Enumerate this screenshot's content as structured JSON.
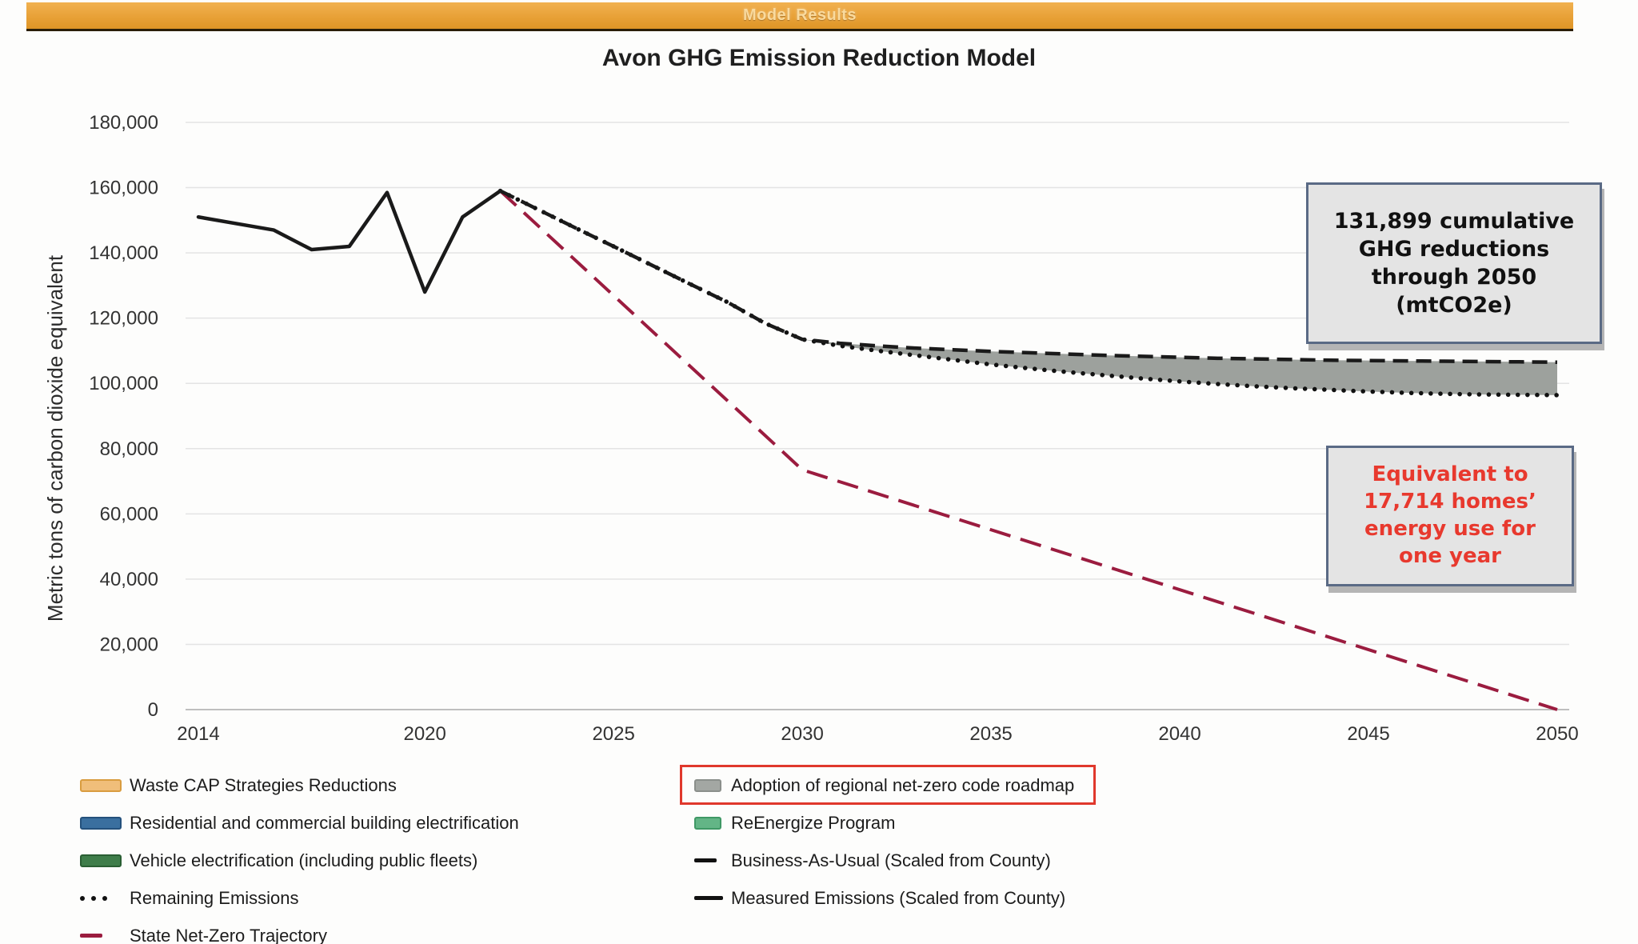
{
  "banner": {
    "label": "Model Results",
    "bg_color": "#E8A137",
    "text_color": "#F9DA9E",
    "border_color": "#2A1E08"
  },
  "chart_data": {
    "type": "line",
    "title": "Avon GHG Emission Reduction Model",
    "xlabel": "",
    "ylabel": "Metric tons of carbon dioxide equivalent",
    "xlim": [
      2014,
      2050
    ],
    "ylim": [
      0,
      180000
    ],
    "x_ticks": [
      2014,
      2020,
      2025,
      2030,
      2035,
      2040,
      2045,
      2050
    ],
    "y_ticks": [
      0,
      20000,
      40000,
      60000,
      80000,
      100000,
      120000,
      140000,
      160000,
      180000
    ],
    "grid": true,
    "legend_position": "bottom",
    "series": [
      {
        "name": "Measured Emissions (Scaled from County)",
        "style": "solid",
        "color": "#1A1A1A",
        "points": [
          [
            2014,
            151000
          ],
          [
            2015,
            149000
          ],
          [
            2016,
            147000
          ],
          [
            2017,
            141000
          ],
          [
            2018,
            142000
          ],
          [
            2019,
            158500
          ],
          [
            2020,
            128000
          ],
          [
            2021,
            151000
          ],
          [
            2022,
            159000
          ]
        ]
      },
      {
        "name": "Business-As-Usual (Scaled from County)",
        "style": "dashed",
        "color": "#1A1A1A",
        "points": [
          [
            2022,
            159000
          ],
          [
            2023,
            153300
          ],
          [
            2024,
            147600
          ],
          [
            2025,
            142000
          ],
          [
            2026,
            136300
          ],
          [
            2027,
            130600
          ],
          [
            2028,
            125000
          ],
          [
            2029,
            118500
          ],
          [
            2030,
            113500
          ],
          [
            2031,
            112300
          ],
          [
            2032,
            111500
          ],
          [
            2033,
            110800
          ],
          [
            2034,
            110300
          ],
          [
            2035,
            109800
          ],
          [
            2036,
            109400
          ],
          [
            2037,
            109000
          ],
          [
            2038,
            108600
          ],
          [
            2039,
            108300
          ],
          [
            2040,
            108000
          ],
          [
            2041,
            107700
          ],
          [
            2042,
            107500
          ],
          [
            2043,
            107300
          ],
          [
            2044,
            107100
          ],
          [
            2045,
            107000
          ],
          [
            2046,
            106900
          ],
          [
            2047,
            106800
          ],
          [
            2048,
            106700
          ],
          [
            2049,
            106600
          ],
          [
            2050,
            106500
          ]
        ]
      },
      {
        "name": "Remaining Emissions",
        "style": "dotted",
        "color": "#111111",
        "points": [
          [
            2022,
            159000
          ],
          [
            2023,
            153300
          ],
          [
            2024,
            147600
          ],
          [
            2025,
            142000
          ],
          [
            2026,
            136300
          ],
          [
            2027,
            130600
          ],
          [
            2028,
            125000
          ],
          [
            2029,
            118500
          ],
          [
            2030,
            113500
          ],
          [
            2031,
            111500
          ],
          [
            2032,
            110000
          ],
          [
            2033,
            108600
          ],
          [
            2034,
            107200
          ],
          [
            2035,
            105800
          ],
          [
            2036,
            104600
          ],
          [
            2037,
            103500
          ],
          [
            2038,
            102500
          ],
          [
            2039,
            101500
          ],
          [
            2040,
            100600
          ],
          [
            2041,
            99800
          ],
          [
            2042,
            99100
          ],
          [
            2043,
            98500
          ],
          [
            2044,
            98000
          ],
          [
            2045,
            97500
          ],
          [
            2046,
            97100
          ],
          [
            2047,
            96800
          ],
          [
            2048,
            96600
          ],
          [
            2049,
            96500
          ],
          [
            2050,
            96400
          ]
        ]
      },
      {
        "name": "State Net-Zero Trajectory",
        "style": "long-dash",
        "color": "#9B1C3F",
        "points": [
          [
            2022,
            159000
          ],
          [
            2030,
            73500
          ],
          [
            2050,
            0
          ]
        ]
      }
    ],
    "band": {
      "name": "Adoption of regional net-zero code roadmap",
      "color": "#9DA19D",
      "between": [
        "Business-As-Usual (Scaled from County)",
        "Remaining Emissions"
      ],
      "from_year": 2030,
      "to_year": 2050
    }
  },
  "legend": {
    "highlight_border_color": "#E0382C",
    "columns": [
      {
        "items": [
          {
            "label": "Waste CAP Strategies Reductions",
            "swatch": "area",
            "color": "#F0BE7A",
            "border": "#D99C3F"
          },
          {
            "label": "Residential and commercial building electrification",
            "swatch": "area",
            "color": "#3A6F9F",
            "border": "#24517C"
          },
          {
            "label": "Vehicle electrification (including public fleets)",
            "swatch": "area",
            "color": "#3F7D4A",
            "border": "#2A5E33"
          },
          {
            "label": "Remaining Emissions",
            "swatch": "dotted-line",
            "color": "#111111"
          },
          {
            "label": "State Net-Zero Trajectory",
            "swatch": "dash-line",
            "color": "#9B1C3F"
          }
        ]
      },
      {
        "items": [
          {
            "label": "Adoption of regional net-zero code roadmap",
            "swatch": "area",
            "color": "#A3A7A3",
            "border": "#8B8F8B",
            "highlighted": true
          },
          {
            "label": "ReEnergize Program",
            "swatch": "area",
            "color": "#63B586",
            "border": "#3F9865"
          },
          {
            "label": "Business-As-Usual (Scaled from County)",
            "swatch": "dash-line",
            "color": "#111111"
          },
          {
            "label": "Measured Emissions (Scaled from County)",
            "swatch": "solid-line",
            "color": "#111111"
          }
        ]
      }
    ]
  },
  "annotations": [
    {
      "text": "131,899 cumulative\nGHG reductions\nthrough 2050\n(mtCO2e)",
      "text_color": "#111111",
      "bg": "#E4E4E4",
      "border": "#5A6A85"
    },
    {
      "text": "Equivalent to\n17,714 homes’\nenergy use for\none year",
      "text_color": "#E8392E",
      "bg": "#E4E4E4",
      "border": "#5A6A85"
    }
  ]
}
